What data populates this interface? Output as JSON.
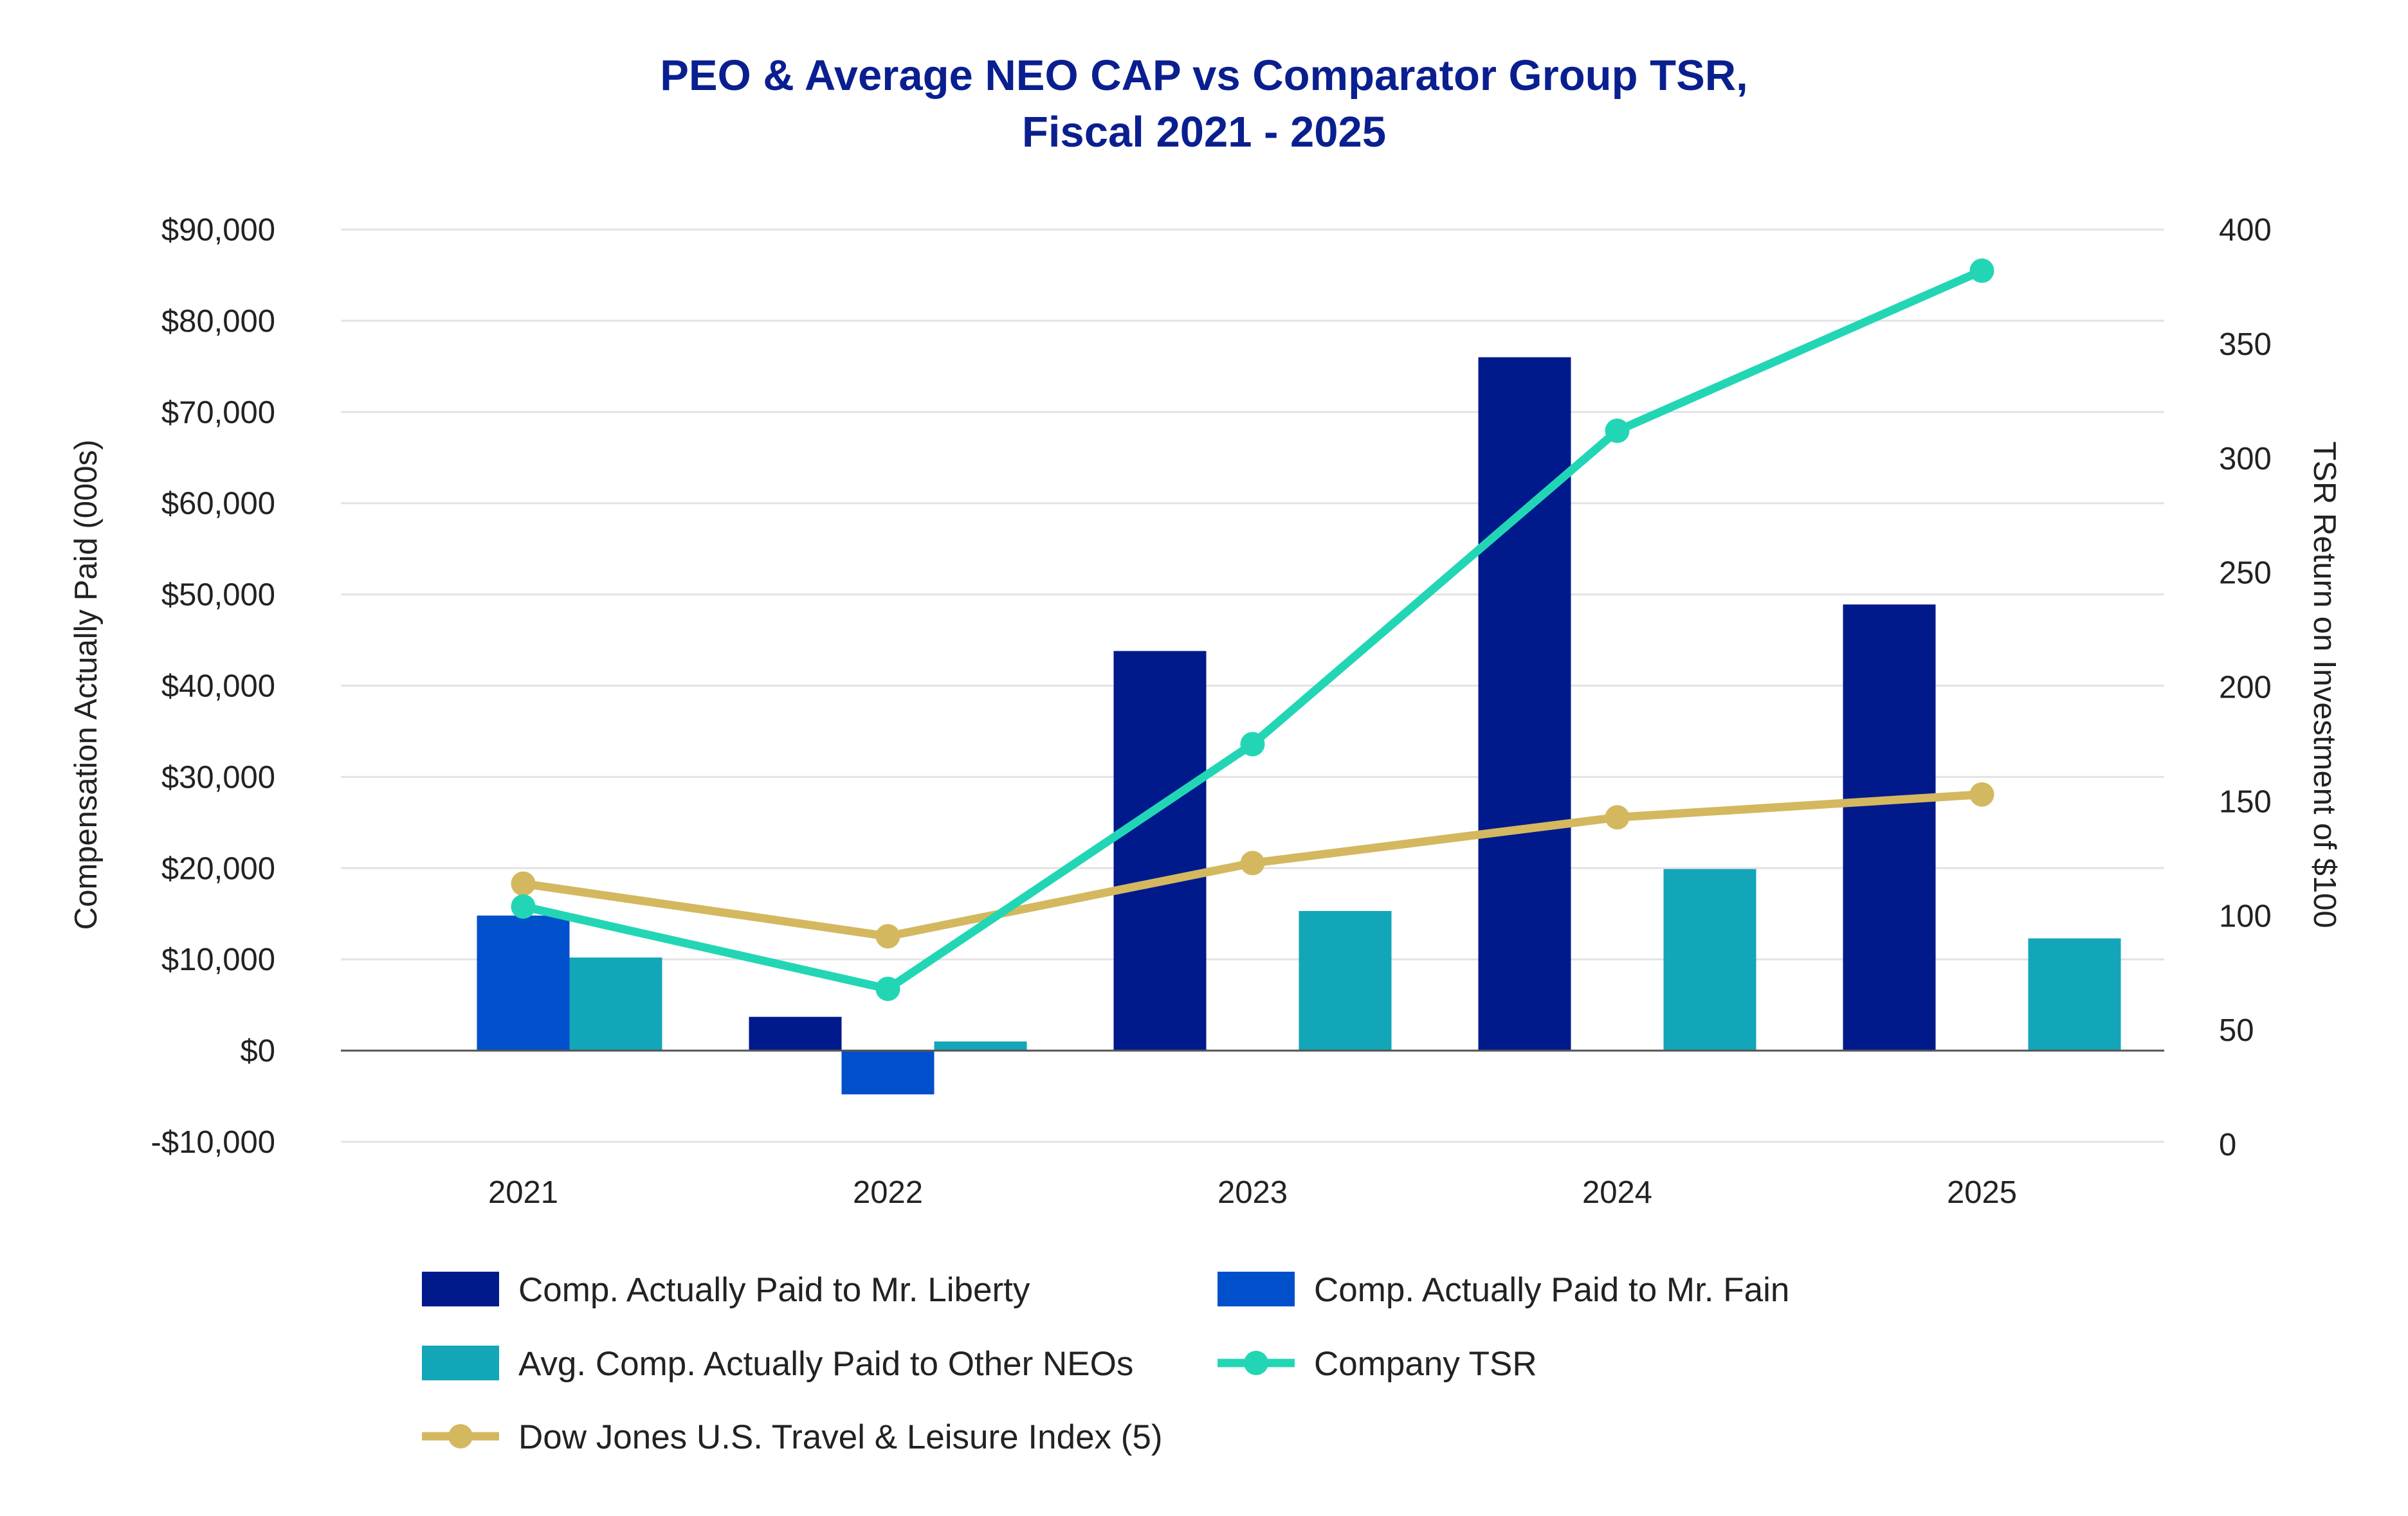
{
  "chart_data": {
    "type": "bar",
    "title": [
      "PEO & Average NEO CAP vs Comparator Group TSR,",
      "Fiscal 2021 - 2025"
    ],
    "categories": [
      "2021",
      "2022",
      "2023",
      "2024",
      "2025"
    ],
    "ylabel": "Compensation Actually Paid (000s)",
    "ylim": [
      -10000,
      90000
    ],
    "yticks": [
      -10000,
      0,
      10000,
      20000,
      30000,
      40000,
      50000,
      60000,
      70000,
      80000,
      90000
    ],
    "ytick_labels": [
      "-$10,000",
      "$0",
      "$10,000",
      "$20,000",
      "$30,000",
      "$40,000",
      "$50,000",
      "$60,000",
      "$70,000",
      "$80,000",
      "$90,000"
    ],
    "y2label": "TSR Return on Investment of $100",
    "y2lim": [
      0,
      400
    ],
    "y2ticks": [
      0,
      50,
      100,
      150,
      200,
      250,
      300,
      350,
      400
    ],
    "y2tick_labels": [
      "0",
      "50",
      "100",
      "150",
      "200",
      "250",
      "300",
      "350",
      "400"
    ],
    "grid": true,
    "legend_position": "bottom",
    "bar_series": [
      {
        "name": "Comp. Actually Paid to Mr. Liberty",
        "color": "#001a8c",
        "values": [
          null,
          3700,
          43800,
          76000,
          48900
        ]
      },
      {
        "name": "Comp. Actually Paid to Mr. Fain",
        "color": "#0050cc",
        "values": [
          14800,
          -4800,
          null,
          null,
          null
        ]
      },
      {
        "name": "Avg. Comp. Actually Paid to Other NEOs",
        "color": "#12a6b8",
        "values": [
          10200,
          1000,
          15300,
          19900,
          12300
        ]
      }
    ],
    "line_series": [
      {
        "name": "Company TSR",
        "color": "#22d6b5",
        "axis": "right",
        "values": [
          104,
          68,
          175,
          312,
          382
        ]
      },
      {
        "name": "Dow Jones U.S. Travel & Leisure Index (5)",
        "color": "#d4b860",
        "axis": "right",
        "values": [
          114,
          91,
          123,
          143,
          153
        ]
      }
    ]
  }
}
